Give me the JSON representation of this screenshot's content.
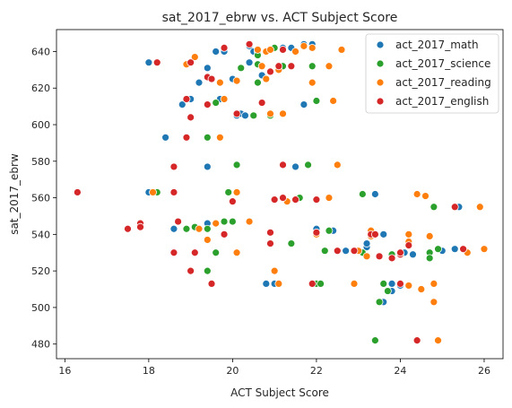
{
  "chart_data": {
    "type": "scatter",
    "title": "sat_2017_ebrw vs. ACT Subject Score",
    "xlabel": "ACT Subject Score",
    "ylabel": "sat_2017_ebrw",
    "xlim": [
      15.8,
      26.45
    ],
    "ylim": [
      472,
      652
    ],
    "xticks": [
      16,
      18,
      20,
      22,
      24,
      26
    ],
    "yticks": [
      480,
      500,
      520,
      540,
      560,
      580,
      600,
      620,
      640
    ],
    "grid": false,
    "legend_position": "top-right",
    "series": [
      {
        "name": "act_2017_math",
        "color": "#1f77b4",
        "points": [
          [
            18.0,
            634
          ],
          [
            18.0,
            563
          ],
          [
            18.4,
            593
          ],
          [
            18.6,
            543
          ],
          [
            18.8,
            611
          ],
          [
            19.0,
            614
          ],
          [
            19.2,
            623
          ],
          [
            19.4,
            631
          ],
          [
            19.4,
            577
          ],
          [
            19.4,
            546
          ],
          [
            19.5,
            625
          ],
          [
            19.6,
            640
          ],
          [
            19.7,
            614
          ],
          [
            19.8,
            640
          ],
          [
            19.8,
            547
          ],
          [
            20.0,
            625
          ],
          [
            20.1,
            605
          ],
          [
            20.2,
            606
          ],
          [
            20.3,
            605
          ],
          [
            20.4,
            643
          ],
          [
            20.4,
            634
          ],
          [
            20.5,
            640
          ],
          [
            20.6,
            640
          ],
          [
            20.7,
            627
          ],
          [
            20.8,
            513
          ],
          [
            20.9,
            535
          ],
          [
            21.0,
            513
          ],
          [
            21.0,
            559
          ],
          [
            21.2,
            642
          ],
          [
            21.4,
            642
          ],
          [
            21.5,
            577
          ],
          [
            21.5,
            559
          ],
          [
            21.7,
            644
          ],
          [
            21.7,
            611
          ],
          [
            21.8,
            578
          ],
          [
            21.9,
            644
          ],
          [
            22.0,
            540
          ],
          [
            22.0,
            543
          ],
          [
            22.4,
            542
          ],
          [
            22.7,
            531
          ],
          [
            23.1,
            562
          ],
          [
            23.2,
            533
          ],
          [
            23.2,
            535
          ],
          [
            23.4,
            562
          ],
          [
            23.6,
            540
          ],
          [
            23.6,
            503
          ],
          [
            23.8,
            513
          ],
          [
            23.8,
            509
          ],
          [
            24.0,
            512
          ],
          [
            24.1,
            530
          ],
          [
            24.3,
            529
          ],
          [
            25.0,
            531
          ],
          [
            25.3,
            532
          ],
          [
            25.4,
            555
          ]
        ]
      },
      {
        "name": "act_2017_science",
        "color": "#2ca02c",
        "points": [
          [
            18.2,
            563
          ],
          [
            18.9,
            543
          ],
          [
            19.1,
            544
          ],
          [
            19.4,
            520
          ],
          [
            19.4,
            593
          ],
          [
            19.4,
            543
          ],
          [
            19.6,
            612
          ],
          [
            19.6,
            530
          ],
          [
            19.8,
            547
          ],
          [
            19.9,
            563
          ],
          [
            20.0,
            547
          ],
          [
            20.1,
            578
          ],
          [
            20.2,
            631
          ],
          [
            20.5,
            605
          ],
          [
            20.6,
            623
          ],
          [
            20.6,
            638
          ],
          [
            20.6,
            633
          ],
          [
            20.9,
            605
          ],
          [
            21.0,
            642
          ],
          [
            21.2,
            632
          ],
          [
            21.4,
            535
          ],
          [
            21.6,
            560
          ],
          [
            21.8,
            578
          ],
          [
            21.9,
            632
          ],
          [
            22.0,
            613
          ],
          [
            22.0,
            513
          ],
          [
            22.1,
            513
          ],
          [
            22.2,
            531
          ],
          [
            22.3,
            542
          ],
          [
            23.1,
            562
          ],
          [
            23.1,
            530
          ],
          [
            23.4,
            482
          ],
          [
            23.5,
            503
          ],
          [
            23.6,
            513
          ],
          [
            23.7,
            509
          ],
          [
            23.8,
            529
          ],
          [
            24.7,
            530
          ],
          [
            24.7,
            527
          ],
          [
            24.8,
            555
          ],
          [
            24.9,
            532
          ]
        ]
      },
      {
        "name": "act_2017_reading",
        "color": "#ff7f0e",
        "points": [
          [
            18.1,
            563
          ],
          [
            18.9,
            633
          ],
          [
            19.1,
            637
          ],
          [
            19.2,
            543
          ],
          [
            19.4,
            537
          ],
          [
            19.6,
            546
          ],
          [
            19.7,
            623
          ],
          [
            19.7,
            593
          ],
          [
            19.8,
            614
          ],
          [
            20.1,
            624
          ],
          [
            20.1,
            563
          ],
          [
            20.1,
            530
          ],
          [
            20.4,
            644
          ],
          [
            20.4,
            547
          ],
          [
            20.6,
            641
          ],
          [
            20.7,
            632
          ],
          [
            20.8,
            625
          ],
          [
            20.8,
            640
          ],
          [
            20.9,
            641
          ],
          [
            20.9,
            606
          ],
          [
            21.0,
            520
          ],
          [
            21.1,
            513
          ],
          [
            21.1,
            630
          ],
          [
            21.2,
            606
          ],
          [
            21.3,
            558
          ],
          [
            21.5,
            640
          ],
          [
            21.7,
            643
          ],
          [
            21.9,
            642
          ],
          [
            21.9,
            623
          ],
          [
            22.0,
            540
          ],
          [
            22.3,
            632
          ],
          [
            22.3,
            560
          ],
          [
            22.4,
            613
          ],
          [
            22.5,
            578
          ],
          [
            22.6,
            641
          ],
          [
            22.9,
            513
          ],
          [
            23.0,
            531
          ],
          [
            23.2,
            528
          ],
          [
            23.3,
            542
          ],
          [
            23.3,
            539
          ],
          [
            24.2,
            512
          ],
          [
            24.2,
            540
          ],
          [
            24.2,
            536
          ],
          [
            24.4,
            562
          ],
          [
            24.5,
            510
          ],
          [
            24.6,
            561
          ],
          [
            24.7,
            539
          ],
          [
            24.8,
            513
          ],
          [
            24.8,
            503
          ],
          [
            24.9,
            482
          ],
          [
            25.6,
            530
          ],
          [
            25.9,
            555
          ],
          [
            26.0,
            532
          ]
        ]
      },
      {
        "name": "act_2017_english",
        "color": "#d62728",
        "points": [
          [
            16.3,
            563
          ],
          [
            17.5,
            543
          ],
          [
            17.8,
            546
          ],
          [
            17.8,
            544
          ],
          [
            18.2,
            634
          ],
          [
            18.6,
            530
          ],
          [
            18.6,
            563
          ],
          [
            18.6,
            577
          ],
          [
            18.7,
            547
          ],
          [
            18.9,
            593
          ],
          [
            18.9,
            614
          ],
          [
            19.0,
            634
          ],
          [
            19.0,
            604
          ],
          [
            19.0,
            520
          ],
          [
            19.1,
            530
          ],
          [
            19.4,
            626
          ],
          [
            19.4,
            611
          ],
          [
            19.5,
            513
          ],
          [
            19.5,
            625
          ],
          [
            19.8,
            642
          ],
          [
            19.8,
            540
          ],
          [
            20.0,
            558
          ],
          [
            20.1,
            606
          ],
          [
            20.4,
            644
          ],
          [
            20.7,
            612
          ],
          [
            20.9,
            629
          ],
          [
            20.9,
            541
          ],
          [
            20.9,
            535
          ],
          [
            21.0,
            559
          ],
          [
            21.1,
            632
          ],
          [
            21.2,
            641
          ],
          [
            21.2,
            560
          ],
          [
            21.2,
            578
          ],
          [
            21.4,
            632
          ],
          [
            21.5,
            559
          ],
          [
            21.9,
            513
          ],
          [
            22.0,
            559
          ],
          [
            22.0,
            541
          ],
          [
            22.5,
            531
          ],
          [
            22.9,
            531
          ],
          [
            23.3,
            540
          ],
          [
            23.4,
            540
          ],
          [
            23.5,
            528
          ],
          [
            23.8,
            527
          ],
          [
            24.0,
            529
          ],
          [
            24.0,
            530
          ],
          [
            24.0,
            513
          ],
          [
            24.2,
            534
          ],
          [
            24.4,
            482
          ],
          [
            25.3,
            555
          ],
          [
            25.5,
            532
          ]
        ]
      }
    ]
  }
}
